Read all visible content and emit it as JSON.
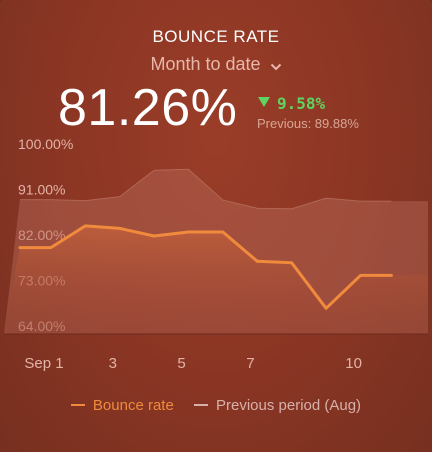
{
  "header": {
    "title": "BOUNCE RATE",
    "period_label": "Month to date",
    "period_icon": "chevron-down-icon",
    "main_value": "81.26%",
    "delta_value": "9.58%",
    "delta_icon": "triangle-down-icon",
    "previous_text": "Previous: 89.88%"
  },
  "colors": {
    "current": "#f08a3c",
    "previous": "#c8918a",
    "positive": "#5fd35f"
  },
  "chart_data": {
    "type": "line",
    "x": [
      1,
      2,
      3,
      4,
      5,
      6,
      7,
      8,
      9,
      10,
      11
    ],
    "xticks": [
      1,
      3,
      5,
      7,
      10
    ],
    "xtick_labels": [
      "Sep 1",
      "3",
      "5",
      "7",
      "10"
    ],
    "yticks": [
      64,
      73,
      82,
      91,
      100
    ],
    "ytick_labels": [
      "64.00%",
      "73.00%",
      "82.00%",
      "91.00%",
      "100.00%"
    ],
    "ylim": [
      64,
      100
    ],
    "series": [
      {
        "name": "Bounce rate",
        "values": [
          79.5,
          79.5,
          83.8,
          83.3,
          81.8,
          82.6,
          82.6,
          76.8,
          76.5,
          67.5,
          74.0,
          74.0
        ]
      },
      {
        "name": "Previous period (Aug)",
        "values": [
          89.0,
          89.0,
          88.8,
          89.6,
          94.8,
          95.0,
          88.9,
          87.3,
          87.2,
          89.3,
          88.7,
          88.7
        ]
      }
    ],
    "x_values": [
      0.3,
      1.2,
      2.2,
      3.2,
      4.2,
      5.2,
      6.2,
      7.2,
      8.2,
      9.2,
      10.2,
      11.1
    ],
    "legend": [
      "Bounce rate",
      "Previous period (Aug)"
    ],
    "legend_position": "bottom",
    "grid": false
  }
}
